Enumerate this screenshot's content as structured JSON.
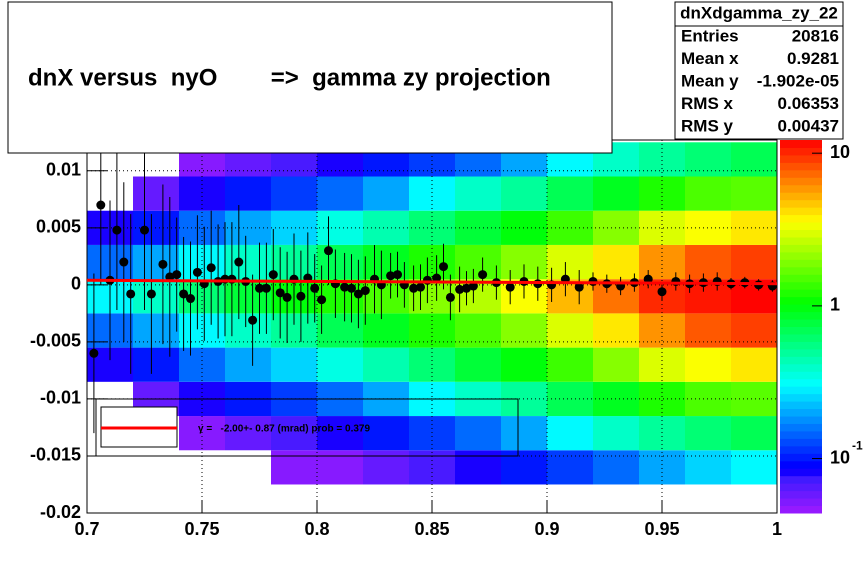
{
  "chart_data": {
    "type": "histogram2d",
    "title": "dnX versus  nyO        =>  gamma zy projection",
    "xlim": [
      0.7,
      1
    ],
    "ylim": [
      -0.02,
      0.0127
    ],
    "xticks": [
      0.7,
      0.75,
      0.8,
      0.85,
      0.9,
      0.95,
      1
    ],
    "yticks": [
      0.01,
      0.005,
      0,
      -0.005,
      -0.01,
      -0.015,
      -0.02
    ],
    "grid": true,
    "log_z": true,
    "zlim": [
      0.044,
      12.2
    ],
    "zticks": [
      {
        "value": 0.1,
        "label": "10",
        "exponent": "-1"
      },
      1,
      10
    ],
    "xbins": [
      0.7,
      0.72,
      0.74,
      0.76,
      0.78,
      0.8,
      0.82,
      0.84,
      0.86,
      0.88,
      0.9,
      0.92,
      0.94,
      0.96,
      0.98,
      1
    ],
    "ybins": [
      -0.0175,
      -0.0145,
      -0.0115,
      -0.0085,
      -0.0055,
      -0.0025,
      0.0005,
      0.0035,
      0.0065,
      0.0095,
      0.0125
    ],
    "z": [
      [
        0,
        0,
        0,
        0,
        0.05,
        0.05,
        0.06,
        0.07,
        0.08,
        0.1,
        0.12,
        0.15,
        0.2,
        0.25,
        0.3
      ],
      [
        0,
        0,
        0.05,
        0.06,
        0.07,
        0.08,
        0.1,
        0.12,
        0.15,
        0.2,
        0.3,
        0.4,
        0.5,
        0.6,
        0.7
      ],
      [
        0,
        0.06,
        0.08,
        0.1,
        0.12,
        0.15,
        0.2,
        0.3,
        0.4,
        0.5,
        0.7,
        0.9,
        1.2,
        1.5,
        1.6
      ],
      [
        0.08,
        0.1,
        0.15,
        0.2,
        0.25,
        0.35,
        0.45,
        0.6,
        0.8,
        1,
        1.4,
        2,
        3,
        3.5,
        4
      ],
      [
        0.15,
        0.2,
        0.3,
        0.4,
        0.5,
        0.7,
        0.9,
        1.2,
        1.5,
        2,
        3,
        4,
        6,
        8,
        9
      ],
      [
        0.3,
        0.4,
        0.6,
        0.8,
        1,
        1.2,
        1.5,
        2,
        2.5,
        3.5,
        5,
        7,
        10,
        11,
        12
      ],
      [
        0.15,
        0.2,
        0.3,
        0.4,
        0.5,
        0.7,
        0.9,
        1.2,
        1.5,
        2,
        3,
        4,
        6,
        8,
        9
      ],
      [
        0.08,
        0.1,
        0.15,
        0.2,
        0.25,
        0.35,
        0.45,
        0.6,
        0.8,
        1,
        1.4,
        2,
        3,
        3.5,
        4
      ],
      [
        0,
        0.06,
        0.08,
        0.1,
        0.12,
        0.15,
        0.2,
        0.3,
        0.4,
        0.5,
        0.7,
        0.9,
        1.2,
        1.5,
        1.6
      ],
      [
        0,
        0,
        0.05,
        0.06,
        0.07,
        0.08,
        0.1,
        0.12,
        0.15,
        0.2,
        0.3,
        0.4,
        0.5,
        0.6,
        0.7
      ]
    ],
    "profile": {
      "color": "#000000",
      "x": [
        0.703,
        0.706,
        0.71,
        0.713,
        0.716,
        0.719,
        0.725,
        0.728,
        0.733,
        0.736,
        0.739,
        0.742,
        0.745,
        0.748,
        0.751,
        0.754,
        0.757,
        0.76,
        0.763,
        0.766,
        0.769,
        0.772,
        0.775,
        0.778,
        0.781,
        0.784,
        0.787,
        0.79,
        0.793,
        0.796,
        0.799,
        0.802,
        0.805,
        0.808,
        0.812,
        0.815,
        0.818,
        0.821,
        0.825,
        0.828,
        0.832,
        0.835,
        0.838,
        0.842,
        0.845,
        0.848,
        0.852,
        0.855,
        0.858,
        0.862,
        0.865,
        0.868,
        0.872,
        0.878,
        0.884,
        0.89,
        0.896,
        0.902,
        0.908,
        0.914,
        0.92,
        0.926,
        0.932,
        0.938,
        0.944,
        0.95,
        0.956,
        0.962,
        0.968,
        0.974,
        0.98,
        0.986,
        0.992,
        0.998
      ],
      "values": [
        -0.006,
        0.007,
        0.0004,
        0.0048,
        0.002,
        -0.0008,
        0.0048,
        -0.0008,
        0.0018,
        0.0007,
        0.0009,
        -0.0008,
        -0.0012,
        0.0011,
        0.0001,
        0.0015,
        0.0003,
        0.0005,
        0.0005,
        0.002,
        0.0003,
        -0.0031,
        -0.0003,
        -0.0003,
        0.0009,
        -0.0007,
        -0.0011,
        0.0005,
        -0.001,
        0.0006,
        -0.0003,
        -0.0013,
        0.003,
        0.0001,
        -0.0002,
        -0.0003,
        -0.0008,
        -0.0005,
        0.0005,
        0,
        0.0008,
        0.0009,
        0,
        -0.0003,
        -0.0002,
        0.0004,
        0.0006,
        0.0016,
        -0.0011,
        -0.0004,
        -0.0003,
        -0.0001,
        0.0009,
        0.0002,
        -0.0002,
        0.0003,
        0.0001,
        0,
        0.0005,
        -0.0002,
        0.0003,
        0.0001,
        -0.0001,
        0.0002,
        0.0005,
        -0.0006,
        0.0003,
        0.0001,
        0.0002,
        0.0003,
        0.0001,
        0.0002,
        0,
        -0.0001
      ],
      "errors": [
        0.007,
        0.007,
        0.007,
        0.007,
        0.007,
        0.007,
        0.007,
        0.007,
        0.007,
        0.007,
        0.005,
        0.005,
        0.005,
        0.005,
        0.005,
        0.005,
        0.005,
        0.005,
        0.005,
        0.005,
        0.004,
        0.004,
        0.004,
        0.004,
        0.004,
        0.004,
        0.004,
        0.004,
        0.004,
        0.004,
        0.003,
        0.003,
        0.003,
        0.003,
        0.003,
        0.003,
        0.003,
        0.003,
        0.003,
        0.003,
        0.002,
        0.002,
        0.002,
        0.002,
        0.002,
        0.002,
        0.002,
        0.002,
        0.002,
        0.002,
        0.0015,
        0.0015,
        0.0015,
        0.0015,
        0.0015,
        0.0015,
        0.0015,
        0.0015,
        0.0015,
        0.0015,
        0.0008,
        0.0008,
        0.0008,
        0.0008,
        0.0008,
        0.0008,
        0.0008,
        0.0008,
        0.0008,
        0.0008,
        0.0005,
        0.0005,
        0.0005,
        0.0005
      ]
    },
    "fit": {
      "color": "#ff0000",
      "x": [
        0.7,
        1
      ],
      "values": [
        0.0004,
        0.0001
      ]
    },
    "fit_label": "γ =   -2.00+- 0.87 (mrad) prob = 0.379",
    "stats": {
      "name": "dnXdgamma_zy_22",
      "rows": [
        [
          "Entries",
          "20816"
        ],
        [
          "Mean x",
          "0.9281"
        ],
        [
          "Mean y",
          "-1.902e-05"
        ],
        [
          "RMS x",
          "0.06353"
        ],
        [
          "RMS y",
          "0.00437"
        ]
      ]
    }
  }
}
